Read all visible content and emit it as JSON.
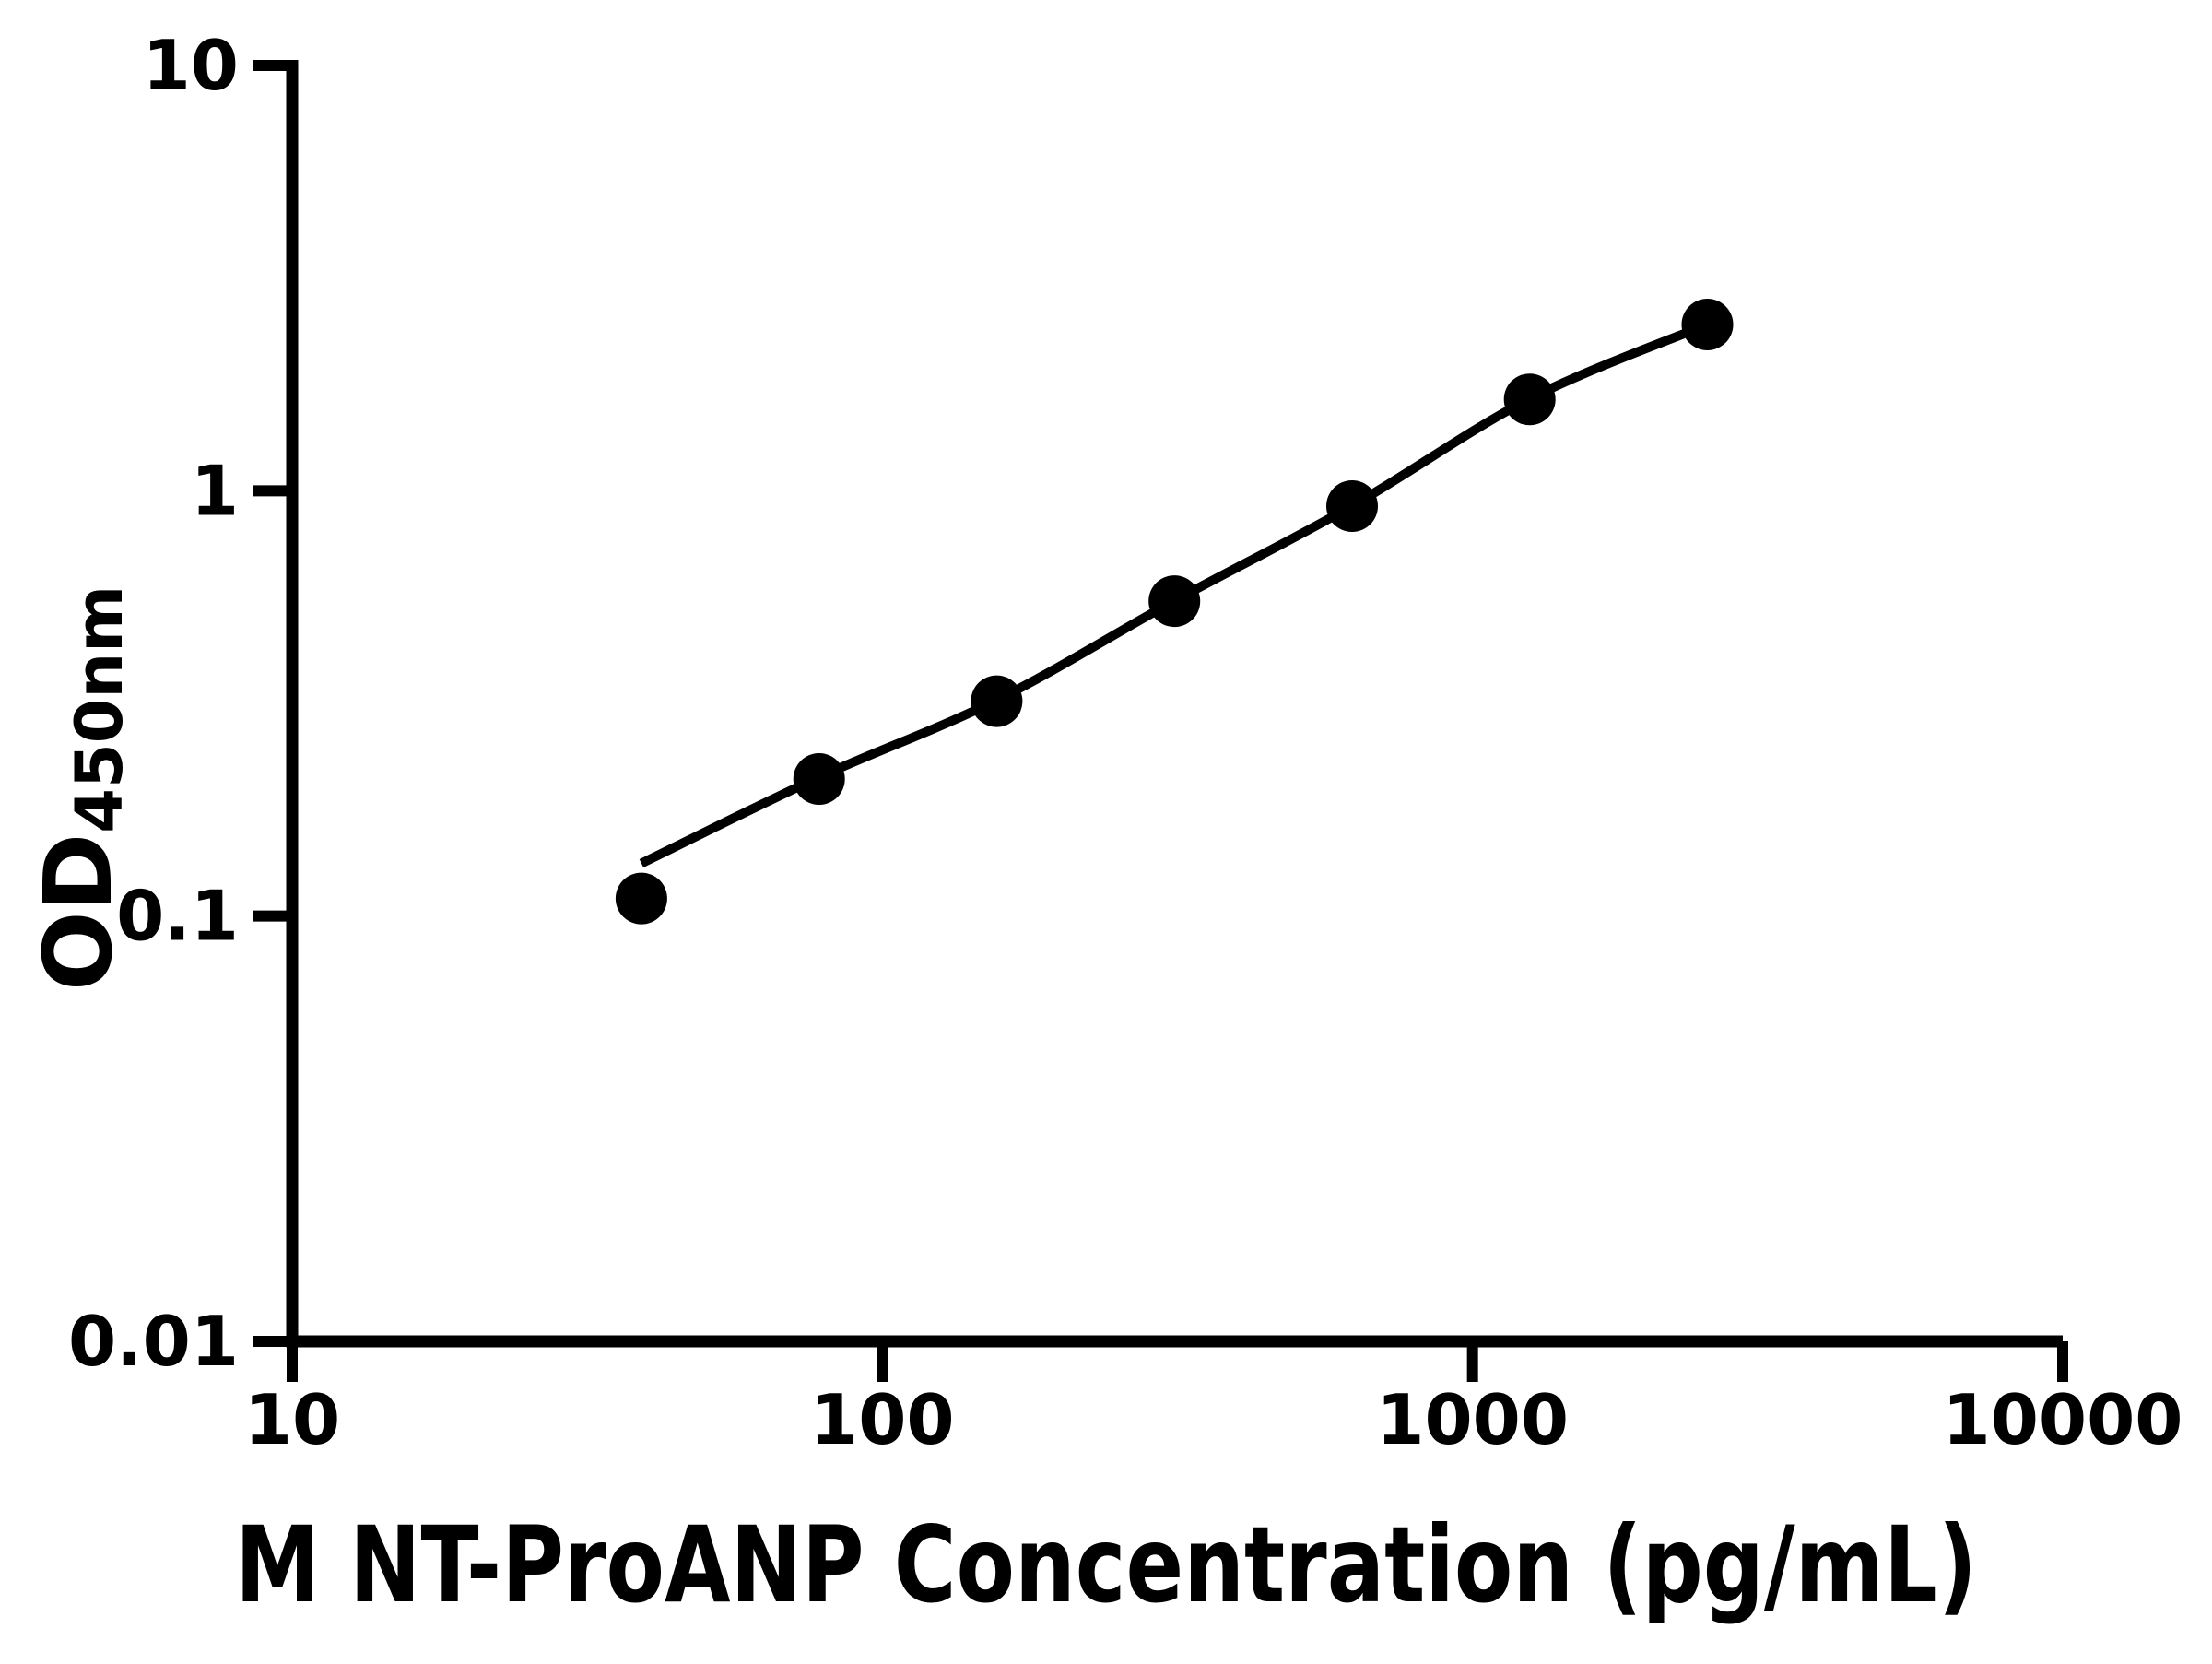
{
  "colors": {
    "foreground": "#000000",
    "background": "#ffffff"
  },
  "chart_data": {
    "type": "scatter",
    "title": "",
    "xlabel": "M NT-ProANP Concentration (pg/mL)",
    "ylabel": "OD",
    "ylabel_sub": "450nm",
    "x_scale": "log",
    "y_scale": "log",
    "xlim": [
      10,
      10000
    ],
    "ylim": [
      0.01,
      10
    ],
    "x_ticks": [
      10,
      100,
      1000,
      10000
    ],
    "x_tick_labels": [
      "10",
      "100",
      "1000",
      "10000"
    ],
    "y_ticks": [
      0.01,
      0.1,
      1,
      10
    ],
    "y_tick_labels": [
      "0.01",
      "0.1",
      "1",
      "10"
    ],
    "grid": false,
    "legend": false,
    "series": [
      {
        "name": "standard-curve-points",
        "marker": "filled-circle",
        "color": "#000000",
        "points": [
          {
            "x": 39.06,
            "y": 0.11
          },
          {
            "x": 78.13,
            "y": 0.21
          },
          {
            "x": 156.25,
            "y": 0.32
          },
          {
            "x": 312.5,
            "y": 0.55
          },
          {
            "x": 625,
            "y": 0.92
          },
          {
            "x": 1250,
            "y": 1.64
          },
          {
            "x": 2500,
            "y": 2.46
          }
        ]
      }
    ],
    "trend_line": {
      "name": "fitted-standard-curve",
      "color": "#000000",
      "anchors": [
        {
          "x": 39.06,
          "y": 0.133
        },
        {
          "x": 78.13,
          "y": 0.212
        },
        {
          "x": 156.25,
          "y": 0.322
        },
        {
          "x": 312.5,
          "y": 0.551
        },
        {
          "x": 625,
          "y": 0.921
        },
        {
          "x": 1250,
          "y": 1.645
        },
        {
          "x": 2500,
          "y": 2.46
        }
      ]
    }
  }
}
